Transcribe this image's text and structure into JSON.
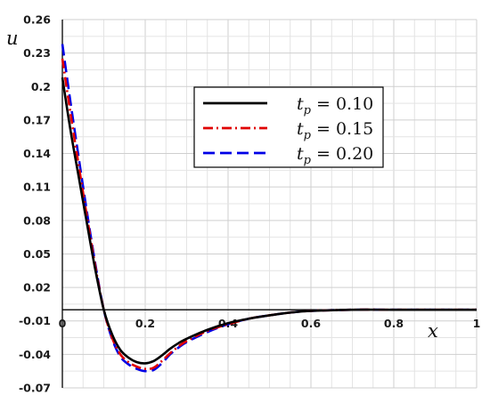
{
  "chart_data": {
    "type": "line",
    "xlabel": "x",
    "ylabel": "u",
    "xlim": [
      0,
      1
    ],
    "ylim": [
      -0.07,
      0.26
    ],
    "x_ticks": [
      "0",
      "0.2",
      "0.4",
      "0.6",
      "0.8",
      "1"
    ],
    "y_ticks": [
      "0.26",
      "0.23",
      "0.2",
      "0.17",
      "0.14",
      "0.11",
      "0.08",
      "0.05",
      "0.02",
      "-0.01",
      "-0.04",
      "-0.07"
    ],
    "grid": true,
    "legend_position": "top-right",
    "series": [
      {
        "name": "t_p = 0.10",
        "legend_param": "0.10",
        "color": "#000000",
        "dash": "solid",
        "x": [
          0,
          0.02,
          0.04,
          0.06,
          0.08,
          0.1,
          0.12,
          0.14,
          0.16,
          0.18,
          0.2,
          0.22,
          0.24,
          0.26,
          0.28,
          0.3,
          0.35,
          0.4,
          0.45,
          0.5,
          0.55,
          0.6,
          0.7,
          0.8,
          0.9,
          1.0
        ],
        "y": [
          0.208,
          0.16,
          0.118,
          0.076,
          0.035,
          0.0,
          -0.022,
          -0.036,
          -0.043,
          -0.047,
          -0.048,
          -0.046,
          -0.041,
          -0.035,
          -0.03,
          -0.026,
          -0.018,
          -0.012,
          -0.008,
          -0.005,
          -0.0025,
          -0.001,
          0.0,
          0.0,
          0.0,
          0.0
        ]
      },
      {
        "name": "t_p = 0.15",
        "legend_param": "0.15",
        "color": "#e00000",
        "dash": "dashdot",
        "x": [
          0,
          0.02,
          0.04,
          0.06,
          0.08,
          0.1,
          0.12,
          0.14,
          0.16,
          0.18,
          0.2,
          0.22,
          0.24,
          0.26,
          0.28,
          0.3,
          0.35,
          0.4,
          0.45,
          0.5,
          0.55,
          0.6,
          0.7,
          0.8,
          0.9,
          1.0
        ],
        "y": [
          0.225,
          0.175,
          0.128,
          0.082,
          0.038,
          0.0,
          -0.025,
          -0.04,
          -0.047,
          -0.051,
          -0.053,
          -0.052,
          -0.046,
          -0.039,
          -0.033,
          -0.028,
          -0.019,
          -0.013,
          -0.008,
          -0.005,
          -0.0025,
          -0.001,
          0.0,
          0.0,
          0.0,
          0.0
        ]
      },
      {
        "name": "t_p = 0.20",
        "legend_param": "0.20",
        "color": "#0000e6",
        "dash": "dashed",
        "x": [
          0,
          0.02,
          0.04,
          0.06,
          0.08,
          0.1,
          0.12,
          0.14,
          0.16,
          0.18,
          0.2,
          0.22,
          0.24,
          0.26,
          0.28,
          0.3,
          0.35,
          0.4,
          0.45,
          0.5,
          0.55,
          0.6,
          0.7,
          0.8,
          0.9,
          1.0
        ],
        "y": [
          0.238,
          0.185,
          0.135,
          0.086,
          0.04,
          0.0,
          -0.026,
          -0.042,
          -0.049,
          -0.053,
          -0.055,
          -0.054,
          -0.048,
          -0.04,
          -0.034,
          -0.029,
          -0.02,
          -0.013,
          -0.008,
          -0.005,
          -0.0025,
          -0.001,
          0.0,
          0.0,
          0.0,
          0.0
        ]
      }
    ]
  }
}
